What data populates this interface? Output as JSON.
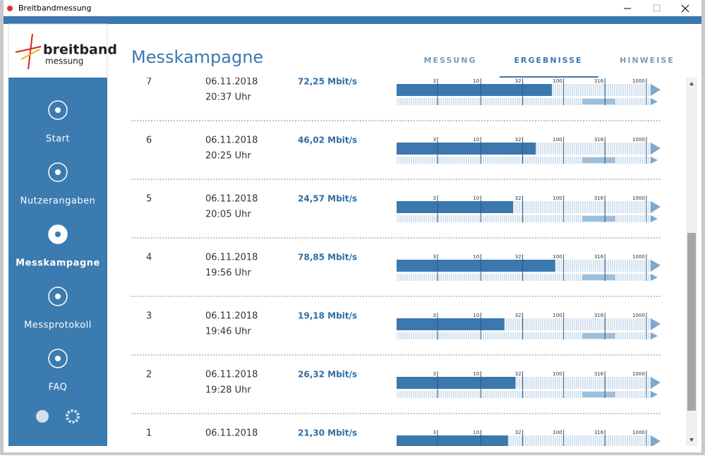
{
  "window": {
    "title": "Breitbandmessung"
  },
  "logo": {
    "line1": "breitband",
    "line2": "messung"
  },
  "sidebar": {
    "items": [
      "Start",
      "Nutzerangaben",
      "Messkampagne",
      "Messprotokoll",
      "FAQ"
    ],
    "active": 2
  },
  "header": {
    "title": "Messkampagne",
    "tabs": [
      "MESSUNG",
      "ERGEBNISSE",
      "HINWEISE"
    ],
    "active_tab": 1
  },
  "scale": {
    "ticks": [
      3,
      10,
      32,
      100,
      316,
      1000
    ]
  },
  "rows": [
    {
      "number": "7",
      "date": "06.11.2018",
      "time": "20:37 Uhr",
      "speed": {
        "value": 72.25,
        "label": "72,25 Mbit/s"
      }
    },
    {
      "number": "6",
      "date": "06.11.2018",
      "time": "20:25 Uhr",
      "speed": {
        "value": 46.02,
        "label": "46,02 Mbit/s"
      }
    },
    {
      "number": "5",
      "date": "06.11.2018",
      "time": "20:05 Uhr",
      "speed": {
        "value": 24.57,
        "label": "24,57 Mbit/s"
      }
    },
    {
      "number": "4",
      "date": "06.11.2018",
      "time": "19:56 Uhr",
      "speed": {
        "value": 78.85,
        "label": "78,85 Mbit/s"
      }
    },
    {
      "number": "3",
      "date": "06.11.2018",
      "time": "19:46 Uhr",
      "speed": {
        "value": 19.18,
        "label": "19,18 Mbit/s"
      }
    },
    {
      "number": "2",
      "date": "06.11.2018",
      "time": "19:28 Uhr",
      "speed": {
        "value": 26.32,
        "label": "26,32 Mbit/s"
      }
    },
    {
      "number": "1",
      "date": "06.11.2018",
      "speed": {
        "value": 21.3,
        "label": "21,30 Mbit/s"
      }
    }
  ]
}
